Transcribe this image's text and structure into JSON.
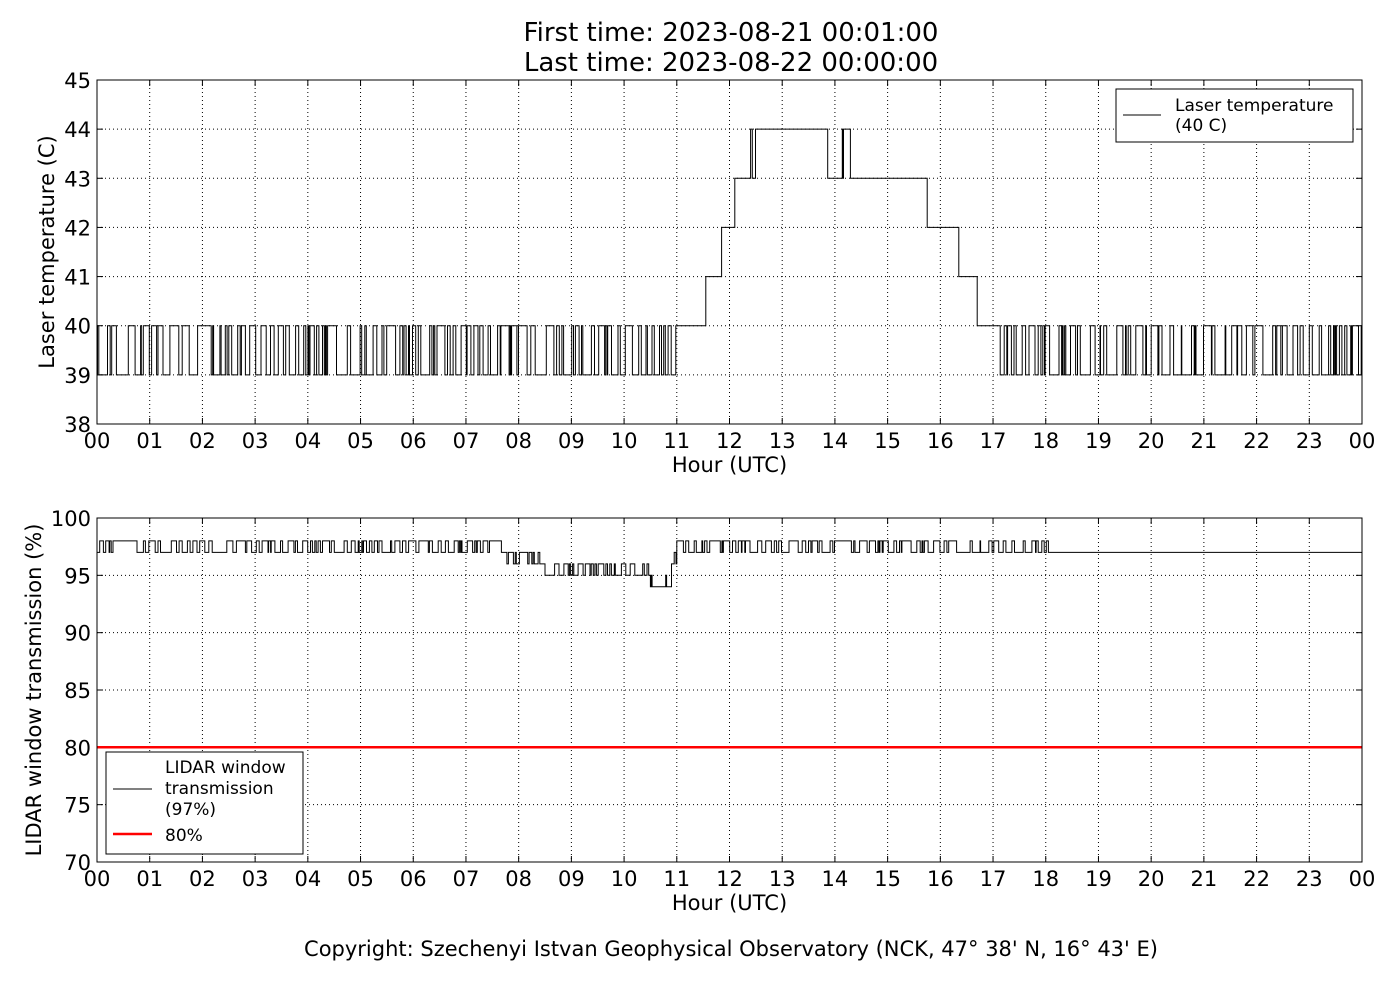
{
  "figure": {
    "title_line1": "First time: 2023-08-21 00:01:00",
    "title_line2": "Last time: 2023-08-22 00:00:00",
    "copyright": "Copyright: Szechenyi Istvan Geophysical Observatory (NCK, 47° 38' N, 16° 43' E)"
  },
  "colors": {
    "series": "#000000",
    "threshold": "#ff0000",
    "grid": "#000000"
  },
  "chart_data": [
    {
      "type": "line",
      "xlabel": "Hour (UTC)",
      "ylabel": "Laser temperature (C)",
      "xlim": [
        0,
        24
      ],
      "ylim": [
        38,
        45
      ],
      "x_ticks": [
        "00",
        "01",
        "02",
        "03",
        "04",
        "05",
        "06",
        "07",
        "08",
        "09",
        "10",
        "11",
        "12",
        "13",
        "14",
        "15",
        "16",
        "17",
        "18",
        "19",
        "20",
        "21",
        "22",
        "23",
        "00"
      ],
      "y_ticks": [
        38,
        39,
        40,
        41,
        42,
        43,
        44,
        45
      ],
      "grid": true,
      "legend_position": "top-right",
      "series": [
        {
          "name": "Laser temperature\n(40 C)",
          "color": "#000000",
          "profile": [
            [
              0.0,
              40,
              "toggle",
              39
            ],
            [
              11.0,
              40
            ],
            [
              11.55,
              41
            ],
            [
              11.85,
              42
            ],
            [
              12.1,
              43
            ],
            [
              12.4,
              44,
              "toggle",
              43
            ],
            [
              12.55,
              44
            ],
            [
              13.85,
              44,
              "toggle",
              43
            ],
            [
              14.35,
              43
            ],
            [
              15.75,
              42
            ],
            [
              16.35,
              41
            ],
            [
              16.7,
              40
            ],
            [
              17.0,
              40,
              "toggle",
              39
            ],
            [
              24.0,
              40
            ]
          ]
        }
      ]
    },
    {
      "type": "line",
      "xlabel": "Hour (UTC)",
      "ylabel": "LIDAR window transmission (%)",
      "xlim": [
        0,
        24
      ],
      "ylim": [
        70,
        100
      ],
      "x_ticks": [
        "00",
        "01",
        "02",
        "03",
        "04",
        "05",
        "06",
        "07",
        "08",
        "09",
        "10",
        "11",
        "12",
        "13",
        "14",
        "15",
        "16",
        "17",
        "18",
        "19",
        "20",
        "21",
        "22",
        "23",
        "00"
      ],
      "y_ticks": [
        70,
        75,
        80,
        85,
        90,
        95,
        100
      ],
      "grid": true,
      "legend_position": "lower-left",
      "series": [
        {
          "name": "LIDAR window\ntransmission\n(97%)",
          "color": "#000000",
          "profile": [
            [
              0.0,
              97,
              "toggle",
              98
            ],
            [
              7.7,
              97,
              "toggle",
              96
            ],
            [
              8.5,
              96,
              "toggle",
              95
            ],
            [
              10.5,
              95,
              "toggle",
              94
            ],
            [
              10.9,
              96,
              "toggle",
              97
            ],
            [
              11.0,
              97,
              "toggle",
              98
            ],
            [
              18.05,
              97
            ],
            [
              24.0,
              97
            ]
          ]
        },
        {
          "name": "80%",
          "color": "#ff0000",
          "values": [
            [
              0,
              80
            ],
            [
              24,
              80
            ]
          ]
        }
      ]
    }
  ]
}
